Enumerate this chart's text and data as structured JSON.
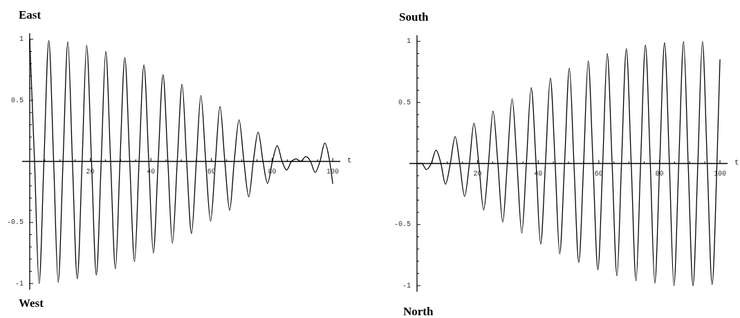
{
  "chart_data": [
    {
      "type": "line",
      "title": "East",
      "annotations": [
        "West"
      ],
      "xlabel": "t",
      "color": "#000000",
      "x": [
        0,
        1.6,
        3.1,
        4.7,
        6.3,
        7.9,
        9.4,
        11.0,
        12.6,
        14.1,
        15.7,
        17.3,
        18.8,
        20.4,
        22.0,
        23.6,
        25.1,
        26.7,
        28.3,
        29.8,
        31.4,
        33.0,
        34.6,
        36.1,
        37.7,
        39.3,
        40.8,
        42.4,
        44.0,
        45.6,
        47.1,
        48.7,
        50.3,
        51.8,
        53.4,
        55.0,
        56.5,
        58.1,
        59.7,
        61.3,
        62.8,
        64.4,
        66.0,
        67.5,
        69.1,
        70.7,
        72.3,
        73.8,
        75.4,
        77.0,
        78.5,
        80.1,
        81.7,
        83.3,
        84.8,
        86.4,
        88.0,
        89.5,
        91.1,
        92.7,
        94.2,
        95.8,
        97.4,
        99.0,
        100
      ],
      "values": [
        1,
        0,
        -1,
        0,
        0.99,
        0,
        -0.99,
        0,
        0.98,
        0,
        -0.96,
        0,
        0.95,
        0,
        -0.93,
        0,
        0.9,
        0,
        -0.88,
        0,
        0.85,
        0,
        -0.82,
        0,
        0.79,
        0,
        -0.75,
        0,
        0.71,
        0,
        -0.67,
        0,
        0.63,
        0,
        -0.59,
        0,
        0.54,
        0,
        -0.49,
        0,
        0.45,
        0,
        -0.4,
        0,
        0.34,
        0,
        -0.29,
        0,
        0.24,
        0,
        -0.18,
        0,
        0.13,
        0,
        -0.07,
        0,
        0.02,
        0,
        0.04,
        0,
        -0.09,
        0,
        0.15,
        0,
        -0.18
      ],
      "xlim": [
        -2.5,
        102.5
      ],
      "xticks": [
        {
          "value": 5,
          "label": null
        },
        {
          "value": 10,
          "label": null
        },
        {
          "value": 15,
          "label": null
        },
        20,
        {
          "value": 25,
          "label": null
        },
        {
          "value": 30,
          "label": null
        },
        {
          "value": 35,
          "label": null
        },
        40,
        {
          "value": 45,
          "label": null
        },
        {
          "value": 50,
          "label": null
        },
        {
          "value": 55,
          "label": null
        },
        60,
        {
          "value": 65,
          "label": null
        },
        {
          "value": 70,
          "label": null
        },
        {
          "value": 75,
          "label": null
        },
        80,
        {
          "value": 85,
          "label": null
        },
        {
          "value": 90,
          "label": null
        },
        {
          "value": 95,
          "label": null
        },
        100
      ],
      "ylim": [
        -1.05,
        1.05
      ],
      "yticks": [
        -1,
        {
          "value": -0.9,
          "label": null
        },
        {
          "value": -0.8,
          "label": null
        },
        {
          "value": -0.7,
          "label": null
        },
        {
          "value": -0.6,
          "label": null
        },
        -0.5,
        {
          "value": -0.4,
          "label": null
        },
        {
          "value": -0.3,
          "label": null
        },
        {
          "value": -0.2,
          "label": null
        },
        {
          "value": -0.1,
          "label": null
        },
        {
          "value": 0.1,
          "label": null
        },
        {
          "value": 0.2,
          "label": null
        },
        {
          "value": 0.3,
          "label": null
        },
        {
          "value": 0.4,
          "label": null
        },
        0.5,
        {
          "value": 0.6,
          "label": null
        },
        {
          "value": 0.7,
          "label": null
        },
        {
          "value": 0.8,
          "label": null
        },
        {
          "value": 0.9,
          "label": null
        },
        1
      ]
    },
    {
      "type": "line",
      "title": "South",
      "annotations": [
        "North"
      ],
      "xlabel": "t",
      "color": "#000000",
      "x": [
        0,
        1.6,
        3.1,
        4.7,
        6.3,
        7.9,
        9.4,
        11.0,
        12.6,
        14.1,
        15.7,
        17.3,
        18.8,
        20.4,
        22.0,
        23.6,
        25.1,
        26.7,
        28.3,
        29.8,
        31.4,
        33.0,
        34.6,
        36.1,
        37.7,
        39.3,
        40.8,
        42.4,
        44.0,
        45.6,
        47.1,
        48.7,
        50.3,
        51.8,
        53.4,
        55.0,
        56.5,
        58.1,
        59.7,
        61.3,
        62.8,
        64.4,
        66.0,
        67.5,
        69.1,
        70.7,
        72.3,
        73.8,
        75.4,
        77.0,
        78.5,
        80.1,
        81.7,
        83.3,
        84.8,
        86.4,
        88.0,
        89.5,
        91.1,
        92.7,
        94.2,
        95.8,
        97.4,
        99.0,
        100
      ],
      "values": [
        0,
        0,
        -0.05,
        0,
        0.11,
        0,
        -0.17,
        0,
        0.22,
        0,
        -0.27,
        0,
        0.33,
        0,
        -0.38,
        0,
        0.43,
        0,
        -0.48,
        0,
        0.53,
        0,
        -0.57,
        0,
        0.62,
        0,
        -0.66,
        0,
        0.7,
        0,
        -0.74,
        0,
        0.78,
        0,
        -0.81,
        0,
        0.84,
        0,
        -0.87,
        0,
        0.9,
        0,
        -0.92,
        0,
        0.94,
        0,
        -0.96,
        0,
        0.97,
        0,
        -0.98,
        0,
        0.99,
        0,
        -1,
        0,
        1,
        0,
        -1,
        0,
        1,
        0,
        -0.99,
        0,
        0.85
      ],
      "xlim": [
        -2.5,
        102.5
      ],
      "xticks": [
        {
          "value": 5,
          "label": null
        },
        {
          "value": 10,
          "label": null
        },
        {
          "value": 15,
          "label": null
        },
        20,
        {
          "value": 25,
          "label": null
        },
        {
          "value": 30,
          "label": null
        },
        {
          "value": 35,
          "label": null
        },
        40,
        {
          "value": 45,
          "label": null
        },
        {
          "value": 50,
          "label": null
        },
        {
          "value": 55,
          "label": null
        },
        60,
        {
          "value": 65,
          "label": null
        },
        {
          "value": 70,
          "label": null
        },
        {
          "value": 75,
          "label": null
        },
        80,
        {
          "value": 85,
          "label": null
        },
        {
          "value": 90,
          "label": null
        },
        {
          "value": 95,
          "label": null
        },
        100
      ],
      "ylim": [
        -1.05,
        1.05
      ],
      "yticks": [
        -1,
        {
          "value": -0.9,
          "label": null
        },
        {
          "value": -0.8,
          "label": null
        },
        {
          "value": -0.7,
          "label": null
        },
        {
          "value": -0.6,
          "label": null
        },
        -0.5,
        {
          "value": -0.4,
          "label": null
        },
        {
          "value": -0.3,
          "label": null
        },
        {
          "value": -0.2,
          "label": null
        },
        {
          "value": -0.1,
          "label": null
        },
        {
          "value": 0.1,
          "label": null
        },
        {
          "value": 0.2,
          "label": null
        },
        {
          "value": 0.3,
          "label": null
        },
        {
          "value": 0.4,
          "label": null
        },
        0.5,
        {
          "value": 0.6,
          "label": null
        },
        {
          "value": 0.7,
          "label": null
        },
        {
          "value": 0.8,
          "label": null
        },
        {
          "value": 0.9,
          "label": null
        },
        1
      ]
    }
  ]
}
